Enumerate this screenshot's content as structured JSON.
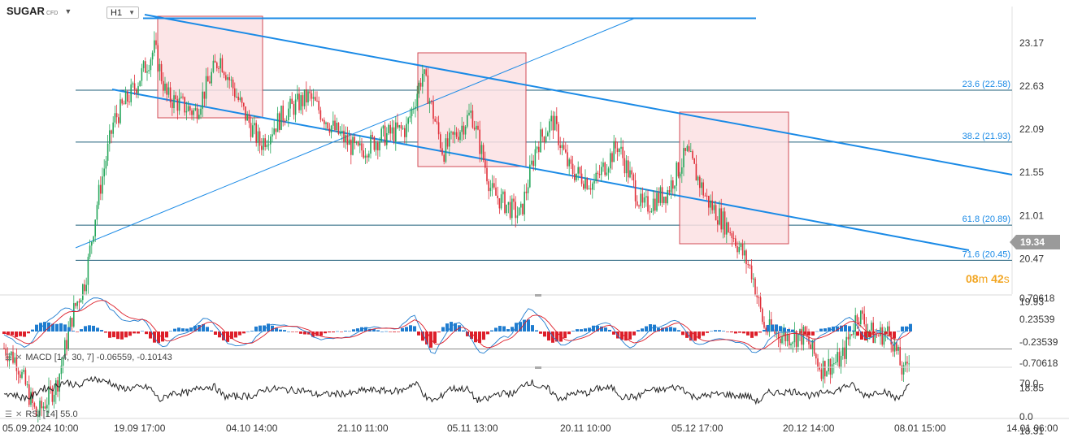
{
  "header": {
    "symbol": "SUGAR",
    "symbol_sub": "CFD",
    "timeframe": "H1"
  },
  "price_axis": [
    "23.17",
    "22.63",
    "22.09",
    "21.55",
    "21.01",
    "20.47",
    "19.93",
    "18.85",
    "18.31"
  ],
  "current_price": "19.34",
  "countdown": {
    "min": "08",
    "min_unit": "m",
    "sec": "42",
    "sec_unit": "s"
  },
  "fib_labels": [
    "23.6 (22.58)",
    "38.2 (21.93)",
    "61.8 (20.89)",
    "71.6 (20.45)"
  ],
  "macd": {
    "label": "MACD [14, 30, 7] -0.06559, -0.10143",
    "axis": [
      "0.70618",
      "0.23539",
      "-0.23539",
      "-0.70618"
    ]
  },
  "rsi": {
    "label": "RSI [14] 55.0",
    "axis": [
      "70.0",
      "0.0"
    ]
  },
  "time_axis": [
    "05.09.2024 10:00",
    "19.09 17:00",
    "04.10 14:00",
    "21.10 11:00",
    "05.11 13:00",
    "20.11 10:00",
    "05.12 17:00",
    "20.12 14:00",
    "08.01 15:00",
    "14.01 06:00"
  ],
  "colors": {
    "up": "#26a65b",
    "down": "#e0303a",
    "trend": "#1a8ae6",
    "zone_fill": "#fbe1e3",
    "zone_border": "#d24b55",
    "countdown": "#f2a623",
    "macd_up": "#1f7ccf",
    "macd_down": "#dd1f2a"
  },
  "icons": {
    "menu": "list-icon",
    "close": "close-icon",
    "dropdown": "chevron-down-icon"
  },
  "chart_data": {
    "type": "candlestick",
    "symbol": "SUGAR",
    "timeframe": "H1",
    "ylim": [
      18.31,
      23.45
    ],
    "close_path_x": [
      "05.09.2024 10:00",
      "19.09 17:00",
      "04.10 14:00",
      "21.10 11:00",
      "05.11 13:00",
      "20.11 10:00",
      "05.12 17:00",
      "20.12 14:00",
      "08.01 15:00"
    ],
    "close_path_y": [
      19.4,
      22.3,
      22.1,
      21.9,
      22.2,
      21.6,
      21.6,
      19.6,
      19.3
    ],
    "horizontal_levels": [
      {
        "label": "23.6 (22.58)",
        "value": 22.58
      },
      {
        "label": "38.2 (21.93)",
        "value": 21.93
      },
      {
        "label": "61.8 (20.89)",
        "value": 20.89
      },
      {
        "label": "71.6 (20.45)",
        "value": 20.45
      },
      {
        "label": "current",
        "value": 19.34
      }
    ],
    "resistance_level": 23.34,
    "current_price": 19.34,
    "macd": {
      "params": [
        14,
        30,
        7
      ],
      "macd": -0.06559,
      "signal": -0.10143,
      "ylim": [
        -0.70618,
        0.70618
      ]
    },
    "rsi": {
      "period": 14,
      "value": 55.0,
      "levels": [
        70.0,
        0.0
      ]
    }
  }
}
